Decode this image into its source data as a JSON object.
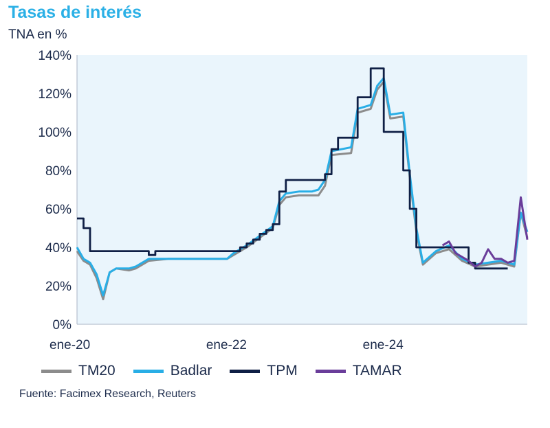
{
  "chart_data": {
    "type": "line",
    "title": "Tasas de interés",
    "ylabel": "TNA en %",
    "yticks": [
      "0%",
      "20%",
      "40%",
      "60%",
      "80%",
      "100%",
      "120%",
      "140%"
    ],
    "ylim": [
      0,
      140
    ],
    "xticks": [
      {
        "label": "ene-20",
        "x": "2020-01"
      },
      {
        "label": "ene-22",
        "x": "2022-01"
      },
      {
        "label": "ene-24",
        "x": "2024-01"
      }
    ],
    "xlim": [
      "2020-01",
      "2025-10"
    ],
    "source": "Fuente: Facimex Research, Reuters",
    "legend_position": "bottom",
    "grid": false,
    "series": [
      {
        "name": "TM20",
        "color": "#8c8c8c",
        "points": [
          [
            "2020-01",
            38
          ],
          [
            "2020-02",
            33
          ],
          [
            "2020-03",
            31
          ],
          [
            "2020-04",
            24
          ],
          [
            "2020-05",
            13
          ],
          [
            "2020-06",
            27
          ],
          [
            "2020-07",
            29
          ],
          [
            "2020-09",
            28
          ],
          [
            "2020-10",
            29
          ],
          [
            "2020-12",
            33
          ],
          [
            "2021-03",
            34
          ],
          [
            "2021-06",
            34
          ],
          [
            "2021-09",
            34
          ],
          [
            "2021-12",
            34
          ],
          [
            "2022-01",
            36
          ],
          [
            "2022-03",
            40
          ],
          [
            "2022-05",
            45
          ],
          [
            "2022-07",
            50
          ],
          [
            "2022-08",
            62
          ],
          [
            "2022-09",
            66
          ],
          [
            "2022-11",
            67
          ],
          [
            "2023-01",
            67
          ],
          [
            "2023-02",
            67
          ],
          [
            "2023-03",
            72
          ],
          [
            "2023-04",
            88
          ],
          [
            "2023-07",
            89
          ],
          [
            "2023-08",
            110
          ],
          [
            "2023-10",
            112
          ],
          [
            "2023-11",
            122
          ],
          [
            "2023-12",
            126
          ],
          [
            "2024-01",
            107
          ],
          [
            "2024-03",
            108
          ],
          [
            "2024-04",
            76
          ],
          [
            "2024-05",
            48
          ],
          [
            "2024-06",
            31
          ],
          [
            "2024-08",
            37
          ],
          [
            "2024-10",
            39
          ],
          [
            "2024-12",
            33
          ],
          [
            "2025-02",
            30
          ],
          [
            "2025-04",
            31
          ],
          [
            "2025-06",
            32
          ],
          [
            "2025-08",
            30
          ],
          [
            "2025-09",
            58
          ],
          [
            "2025-10",
            45
          ]
        ]
      },
      {
        "name": "Badlar",
        "color": "#29aee6",
        "points": [
          [
            "2020-01",
            40
          ],
          [
            "2020-02",
            34
          ],
          [
            "2020-03",
            32
          ],
          [
            "2020-04",
            26
          ],
          [
            "2020-05",
            15
          ],
          [
            "2020-06",
            27
          ],
          [
            "2020-07",
            29
          ],
          [
            "2020-09",
            29
          ],
          [
            "2020-10",
            30
          ],
          [
            "2020-12",
            34
          ],
          [
            "2021-03",
            34
          ],
          [
            "2021-06",
            34
          ],
          [
            "2021-09",
            34
          ],
          [
            "2021-12",
            34
          ],
          [
            "2022-01",
            37
          ],
          [
            "2022-03",
            41
          ],
          [
            "2022-05",
            46
          ],
          [
            "2022-07",
            51
          ],
          [
            "2022-08",
            64
          ],
          [
            "2022-09",
            68
          ],
          [
            "2022-11",
            69
          ],
          [
            "2023-01",
            69
          ],
          [
            "2023-02",
            70
          ],
          [
            "2023-03",
            75
          ],
          [
            "2023-04",
            90
          ],
          [
            "2023-07",
            92
          ],
          [
            "2023-08",
            112
          ],
          [
            "2023-10",
            114
          ],
          [
            "2023-11",
            124
          ],
          [
            "2023-12",
            128
          ],
          [
            "2024-01",
            109
          ],
          [
            "2024-03",
            110
          ],
          [
            "2024-04",
            78
          ],
          [
            "2024-05",
            50
          ],
          [
            "2024-06",
            32
          ],
          [
            "2024-08",
            38
          ],
          [
            "2024-10",
            41
          ],
          [
            "2024-12",
            34
          ],
          [
            "2025-02",
            31
          ],
          [
            "2025-04",
            32
          ],
          [
            "2025-06",
            33
          ],
          [
            "2025-08",
            31
          ],
          [
            "2025-09",
            58
          ],
          [
            "2025-10",
            48
          ]
        ]
      },
      {
        "name": "TPM",
        "color": "#0f1f45",
        "points": [
          [
            "2020-01",
            55
          ],
          [
            "2020-02",
            50
          ],
          [
            "2020-03",
            38
          ],
          [
            "2020-11",
            38
          ],
          [
            "2020-12",
            36
          ],
          [
            "2021-01",
            38
          ],
          [
            "2022-01",
            38
          ],
          [
            "2022-02",
            40
          ],
          [
            "2022-03",
            42
          ],
          [
            "2022-04",
            44
          ],
          [
            "2022-05",
            47
          ],
          [
            "2022-06",
            49
          ],
          [
            "2022-07",
            52
          ],
          [
            "2022-08",
            69
          ],
          [
            "2022-09",
            75
          ],
          [
            "2023-03",
            78
          ],
          [
            "2023-04",
            91
          ],
          [
            "2023-05",
            97
          ],
          [
            "2023-08",
            118
          ],
          [
            "2023-10",
            133
          ],
          [
            "2023-12",
            100
          ],
          [
            "2024-03",
            80
          ],
          [
            "2024-04",
            60
          ],
          [
            "2024-05",
            40
          ],
          [
            "2025-01",
            32
          ],
          [
            "2025-02",
            29
          ],
          [
            "2025-07",
            29
          ]
        ]
      },
      {
        "name": "TAMAR",
        "color": "#6a3d9a",
        "points": [
          [
            "2024-09",
            41
          ],
          [
            "2024-10",
            43
          ],
          [
            "2024-11",
            37
          ],
          [
            "2024-12",
            35
          ],
          [
            "2025-01",
            33
          ],
          [
            "2025-02",
            30
          ],
          [
            "2025-03",
            32
          ],
          [
            "2025-04",
            39
          ],
          [
            "2025-05",
            34
          ],
          [
            "2025-06",
            34
          ],
          [
            "2025-07",
            32
          ],
          [
            "2025-08",
            33
          ],
          [
            "2025-09",
            66
          ],
          [
            "2025-10",
            44
          ]
        ]
      }
    ]
  }
}
